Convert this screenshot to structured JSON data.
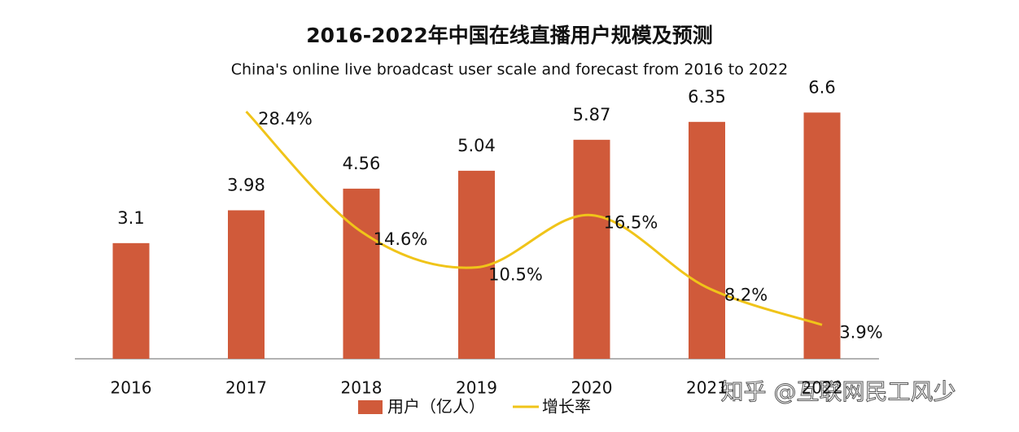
{
  "chart_data": {
    "type": "bar_line",
    "title": "2016-2022年中国在线直播用户规模及预测",
    "subtitle": "China's online live broadcast user scale and forecast from 2016 to 2022",
    "categories": [
      "2016",
      "2017",
      "2018",
      "2019",
      "2020",
      "2021",
      "2022"
    ],
    "series": [
      {
        "name": "用户（亿人）",
        "type": "bar",
        "color": "#d05a3a",
        "values": [
          3.1,
          3.98,
          4.56,
          5.04,
          5.87,
          6.35,
          6.6
        ]
      },
      {
        "name": "增长率",
        "type": "line",
        "axis": "y2",
        "color": "#f0c419",
        "values": [
          null,
          28.4,
          14.6,
          10.5,
          16.5,
          8.2,
          3.9
        ],
        "value_labels": [
          null,
          "28.4%",
          "14.6%",
          "10.5%",
          "16.5%",
          "8.2%",
          "3.9%"
        ]
      }
    ],
    "ylim": [
      0,
      7
    ],
    "y2lim": [
      0,
      30
    ],
    "watermark": "知乎 @互联网民工风少"
  }
}
